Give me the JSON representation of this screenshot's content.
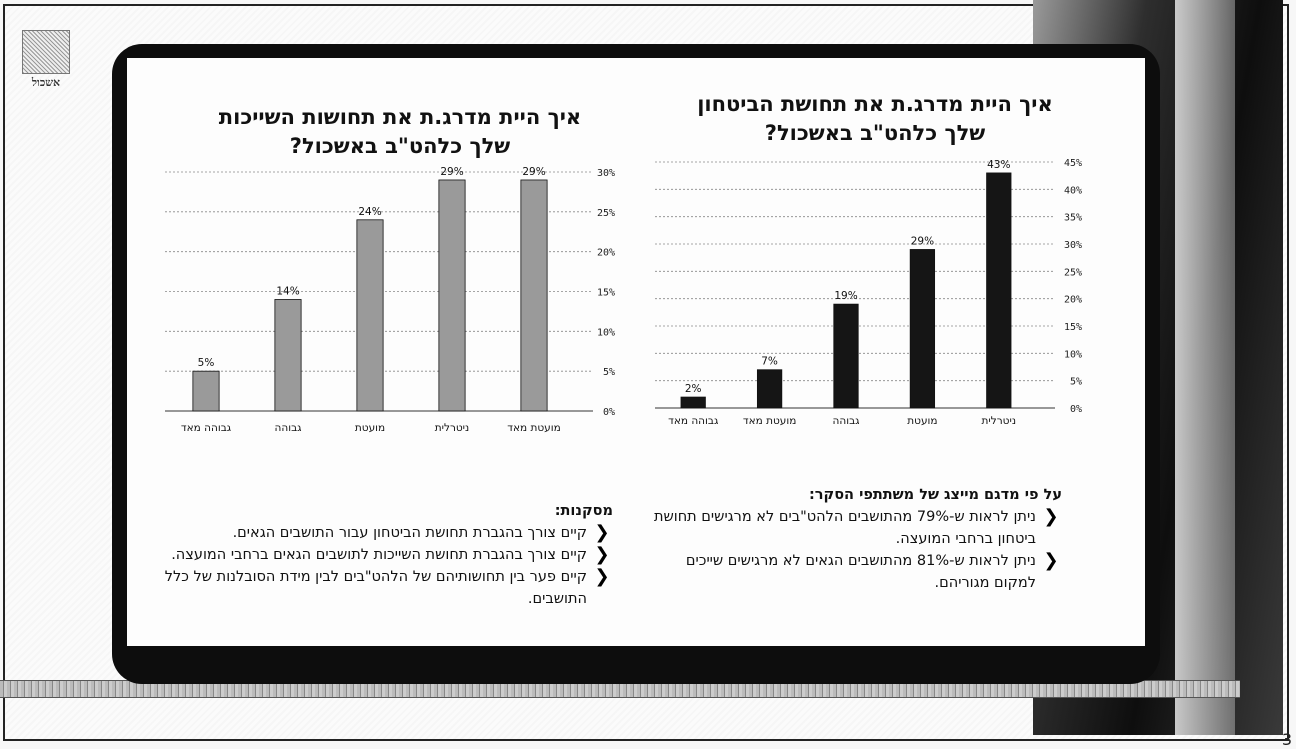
{
  "logo": {
    "text": "אשכול"
  },
  "page_number": "3",
  "chart_data": [
    {
      "type": "bar",
      "title": "איך היית מדרג.ת את תחושת הביטחון שלך כלהט\"ב באשכול?",
      "title_lines": [
        "איך היית מדרג.ת את תחושת הביטחון",
        "שלך כלהט\"ב באשכול?"
      ],
      "categories": [
        "גבוהה מאד",
        "מועטת מאד",
        "גבוהה",
        "מועטת",
        "ניטרלית"
      ],
      "values": [
        2,
        7,
        19,
        29,
        43
      ],
      "data_labels": [
        "2%",
        "7%",
        "19%",
        "29%",
        "43%"
      ],
      "ylim": [
        0,
        45
      ],
      "yticks": [
        "0%",
        "5%",
        "10%",
        "15%",
        "20%",
        "25%",
        "30%",
        "35%",
        "40%",
        "45%"
      ],
      "axis_side": "right",
      "grid": true,
      "bar_color": "#151515"
    },
    {
      "type": "bar",
      "title": "איך היית מדרג.ת את תחושות השייכות שלך כלהט\"ב באשכול?",
      "title_lines": [
        "איך היית מדרג.ת את תחושות השייכות",
        "שלך כלהט\"ב באשכול?"
      ],
      "categories": [
        "גבוהה מאד",
        "גבוהה",
        "מועטת",
        "ניטרלית",
        "מועטת מאד"
      ],
      "values": [
        5,
        14,
        24,
        29,
        29
      ],
      "data_labels": [
        "5%",
        "14%",
        "24%",
        "29%",
        "29%"
      ],
      "ylim": [
        0,
        30
      ],
      "yticks": [
        "0%",
        "5%",
        "10%",
        "15%",
        "20%",
        "25%",
        "30%"
      ],
      "axis_side": "right",
      "grid": true,
      "bar_color": "#9a9a9a"
    }
  ],
  "notes_right": {
    "heading": "על פי מדגם מייצג של משתתפי הסקר:",
    "bullets": [
      "ניתן לראות ש-79% מהתושבים הלהט\"בים לא מרגישים תחושת ביטחון ברחבי המועצה.",
      "ניתן לראות ש-81% מהתושבים הגאים לא מרגישים שייכים למקום מגוריהם."
    ]
  },
  "notes_left": {
    "heading": "מסקנות:",
    "bullets": [
      "קיים צורך בהגברת תחושת הביטחון עבור התושבים הגאים.",
      "קיים צורך בהגברת תחושת השייכות לתושבים הגאים ברחבי המועצה.",
      "קיים פער בין תחושותיהם של הלהט\"בים לבין מידת הסובלנות של כלל התושבים."
    ]
  }
}
